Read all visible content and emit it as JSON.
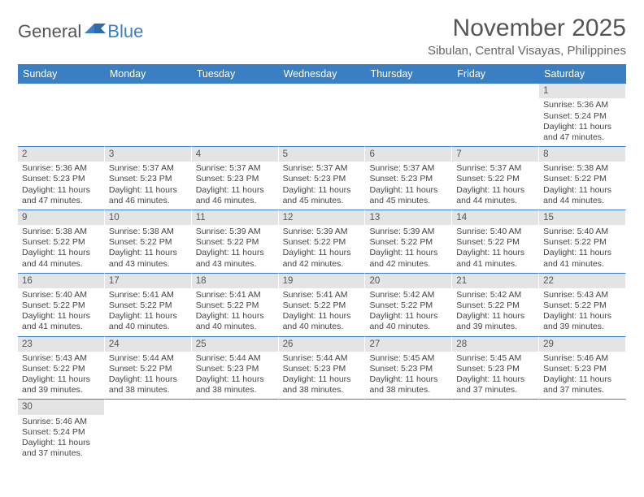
{
  "logo": {
    "general": "General",
    "blue": "Blue"
  },
  "title": "November 2025",
  "location": "Sibulan, Central Visayas, Philippines",
  "colors": {
    "header_bg": "#3a7fc4",
    "header_text": "#ffffff",
    "daynum_bg": "#e4e4e4",
    "border": "#3a7fc4",
    "text": "#444444",
    "title_text": "#555555",
    "body_bg": "#ffffff"
  },
  "typography": {
    "title_fontsize": 30,
    "location_fontsize": 15,
    "dayhead_fontsize": 12.5,
    "cell_fontsize": 10.5,
    "daynum_fontsize": 11.5
  },
  "day_headers": [
    "Sunday",
    "Monday",
    "Tuesday",
    "Wednesday",
    "Thursday",
    "Friday",
    "Saturday"
  ],
  "weeks": [
    [
      {
        "empty": true
      },
      {
        "empty": true
      },
      {
        "empty": true
      },
      {
        "empty": true
      },
      {
        "empty": true
      },
      {
        "empty": true
      },
      {
        "day": "1",
        "sunrise": "Sunrise: 5:36 AM",
        "sunset": "Sunset: 5:24 PM",
        "daylight1": "Daylight: 11 hours",
        "daylight2": "and 47 minutes."
      }
    ],
    [
      {
        "day": "2",
        "sunrise": "Sunrise: 5:36 AM",
        "sunset": "Sunset: 5:23 PM",
        "daylight1": "Daylight: 11 hours",
        "daylight2": "and 47 minutes."
      },
      {
        "day": "3",
        "sunrise": "Sunrise: 5:37 AM",
        "sunset": "Sunset: 5:23 PM",
        "daylight1": "Daylight: 11 hours",
        "daylight2": "and 46 minutes."
      },
      {
        "day": "4",
        "sunrise": "Sunrise: 5:37 AM",
        "sunset": "Sunset: 5:23 PM",
        "daylight1": "Daylight: 11 hours",
        "daylight2": "and 46 minutes."
      },
      {
        "day": "5",
        "sunrise": "Sunrise: 5:37 AM",
        "sunset": "Sunset: 5:23 PM",
        "daylight1": "Daylight: 11 hours",
        "daylight2": "and 45 minutes."
      },
      {
        "day": "6",
        "sunrise": "Sunrise: 5:37 AM",
        "sunset": "Sunset: 5:23 PM",
        "daylight1": "Daylight: 11 hours",
        "daylight2": "and 45 minutes."
      },
      {
        "day": "7",
        "sunrise": "Sunrise: 5:37 AM",
        "sunset": "Sunset: 5:22 PM",
        "daylight1": "Daylight: 11 hours",
        "daylight2": "and 44 minutes."
      },
      {
        "day": "8",
        "sunrise": "Sunrise: 5:38 AM",
        "sunset": "Sunset: 5:22 PM",
        "daylight1": "Daylight: 11 hours",
        "daylight2": "and 44 minutes."
      }
    ],
    [
      {
        "day": "9",
        "sunrise": "Sunrise: 5:38 AM",
        "sunset": "Sunset: 5:22 PM",
        "daylight1": "Daylight: 11 hours",
        "daylight2": "and 44 minutes."
      },
      {
        "day": "10",
        "sunrise": "Sunrise: 5:38 AM",
        "sunset": "Sunset: 5:22 PM",
        "daylight1": "Daylight: 11 hours",
        "daylight2": "and 43 minutes."
      },
      {
        "day": "11",
        "sunrise": "Sunrise: 5:39 AM",
        "sunset": "Sunset: 5:22 PM",
        "daylight1": "Daylight: 11 hours",
        "daylight2": "and 43 minutes."
      },
      {
        "day": "12",
        "sunrise": "Sunrise: 5:39 AM",
        "sunset": "Sunset: 5:22 PM",
        "daylight1": "Daylight: 11 hours",
        "daylight2": "and 42 minutes."
      },
      {
        "day": "13",
        "sunrise": "Sunrise: 5:39 AM",
        "sunset": "Sunset: 5:22 PM",
        "daylight1": "Daylight: 11 hours",
        "daylight2": "and 42 minutes."
      },
      {
        "day": "14",
        "sunrise": "Sunrise: 5:40 AM",
        "sunset": "Sunset: 5:22 PM",
        "daylight1": "Daylight: 11 hours",
        "daylight2": "and 41 minutes."
      },
      {
        "day": "15",
        "sunrise": "Sunrise: 5:40 AM",
        "sunset": "Sunset: 5:22 PM",
        "daylight1": "Daylight: 11 hours",
        "daylight2": "and 41 minutes."
      }
    ],
    [
      {
        "day": "16",
        "sunrise": "Sunrise: 5:40 AM",
        "sunset": "Sunset: 5:22 PM",
        "daylight1": "Daylight: 11 hours",
        "daylight2": "and 41 minutes."
      },
      {
        "day": "17",
        "sunrise": "Sunrise: 5:41 AM",
        "sunset": "Sunset: 5:22 PM",
        "daylight1": "Daylight: 11 hours",
        "daylight2": "and 40 minutes."
      },
      {
        "day": "18",
        "sunrise": "Sunrise: 5:41 AM",
        "sunset": "Sunset: 5:22 PM",
        "daylight1": "Daylight: 11 hours",
        "daylight2": "and 40 minutes."
      },
      {
        "day": "19",
        "sunrise": "Sunrise: 5:41 AM",
        "sunset": "Sunset: 5:22 PM",
        "daylight1": "Daylight: 11 hours",
        "daylight2": "and 40 minutes."
      },
      {
        "day": "20",
        "sunrise": "Sunrise: 5:42 AM",
        "sunset": "Sunset: 5:22 PM",
        "daylight1": "Daylight: 11 hours",
        "daylight2": "and 40 minutes."
      },
      {
        "day": "21",
        "sunrise": "Sunrise: 5:42 AM",
        "sunset": "Sunset: 5:22 PM",
        "daylight1": "Daylight: 11 hours",
        "daylight2": "and 39 minutes."
      },
      {
        "day": "22",
        "sunrise": "Sunrise: 5:43 AM",
        "sunset": "Sunset: 5:22 PM",
        "daylight1": "Daylight: 11 hours",
        "daylight2": "and 39 minutes."
      }
    ],
    [
      {
        "day": "23",
        "sunrise": "Sunrise: 5:43 AM",
        "sunset": "Sunset: 5:22 PM",
        "daylight1": "Daylight: 11 hours",
        "daylight2": "and 39 minutes."
      },
      {
        "day": "24",
        "sunrise": "Sunrise: 5:44 AM",
        "sunset": "Sunset: 5:22 PM",
        "daylight1": "Daylight: 11 hours",
        "daylight2": "and 38 minutes."
      },
      {
        "day": "25",
        "sunrise": "Sunrise: 5:44 AM",
        "sunset": "Sunset: 5:23 PM",
        "daylight1": "Daylight: 11 hours",
        "daylight2": "and 38 minutes."
      },
      {
        "day": "26",
        "sunrise": "Sunrise: 5:44 AM",
        "sunset": "Sunset: 5:23 PM",
        "daylight1": "Daylight: 11 hours",
        "daylight2": "and 38 minutes."
      },
      {
        "day": "27",
        "sunrise": "Sunrise: 5:45 AM",
        "sunset": "Sunset: 5:23 PM",
        "daylight1": "Daylight: 11 hours",
        "daylight2": "and 38 minutes."
      },
      {
        "day": "28",
        "sunrise": "Sunrise: 5:45 AM",
        "sunset": "Sunset: 5:23 PM",
        "daylight1": "Daylight: 11 hours",
        "daylight2": "and 37 minutes."
      },
      {
        "day": "29",
        "sunrise": "Sunrise: 5:46 AM",
        "sunset": "Sunset: 5:23 PM",
        "daylight1": "Daylight: 11 hours",
        "daylight2": "and 37 minutes."
      }
    ],
    [
      {
        "day": "30",
        "sunrise": "Sunrise: 5:46 AM",
        "sunset": "Sunset: 5:24 PM",
        "daylight1": "Daylight: 11 hours",
        "daylight2": "and 37 minutes."
      },
      {
        "empty": true
      },
      {
        "empty": true
      },
      {
        "empty": true
      },
      {
        "empty": true
      },
      {
        "empty": true
      },
      {
        "empty": true
      }
    ]
  ]
}
